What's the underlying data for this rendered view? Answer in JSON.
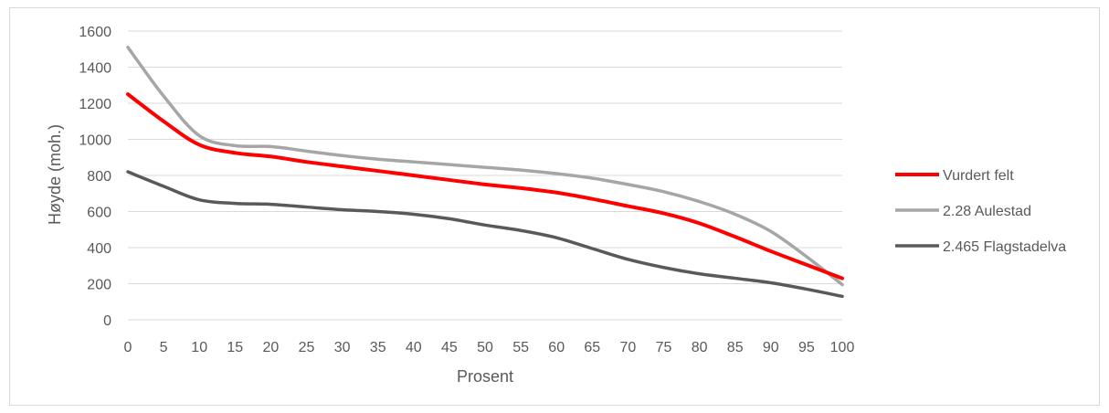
{
  "chart_data": {
    "type": "line",
    "title": "",
    "xlabel": "Prosent",
    "ylabel": "Høyde (moh.)",
    "x": [
      0,
      5,
      10,
      15,
      20,
      25,
      30,
      35,
      40,
      45,
      50,
      55,
      60,
      65,
      70,
      75,
      80,
      85,
      90,
      95,
      100
    ],
    "xlim": [
      0,
      100
    ],
    "ylim": [
      0,
      1600
    ],
    "xticks": [
      0,
      5,
      10,
      15,
      20,
      25,
      30,
      35,
      40,
      45,
      50,
      55,
      60,
      65,
      70,
      75,
      80,
      85,
      90,
      95,
      100
    ],
    "yticks": [
      0,
      200,
      400,
      600,
      800,
      1000,
      1200,
      1400,
      1600
    ],
    "grid": "horizontal",
    "legend_position": "right",
    "series": [
      {
        "name": "Vurdert felt",
        "color": "#ff0000",
        "values": [
          1250,
          1100,
          970,
          925,
          905,
          875,
          850,
          825,
          800,
          775,
          750,
          730,
          705,
          670,
          630,
          590,
          535,
          460,
          380,
          305,
          230
        ]
      },
      {
        "name": "2.28 Aulestad",
        "color": "#a6a6a6",
        "values": [
          1510,
          1240,
          1020,
          965,
          960,
          935,
          910,
          890,
          875,
          860,
          845,
          830,
          810,
          785,
          750,
          710,
          655,
          585,
          490,
          350,
          195
        ]
      },
      {
        "name": "2.465 Flagstadelva",
        "color": "#595959",
        "values": [
          820,
          740,
          665,
          645,
          640,
          625,
          610,
          600,
          585,
          560,
          525,
          495,
          455,
          395,
          335,
          290,
          255,
          230,
          205,
          170,
          130
        ]
      }
    ]
  }
}
